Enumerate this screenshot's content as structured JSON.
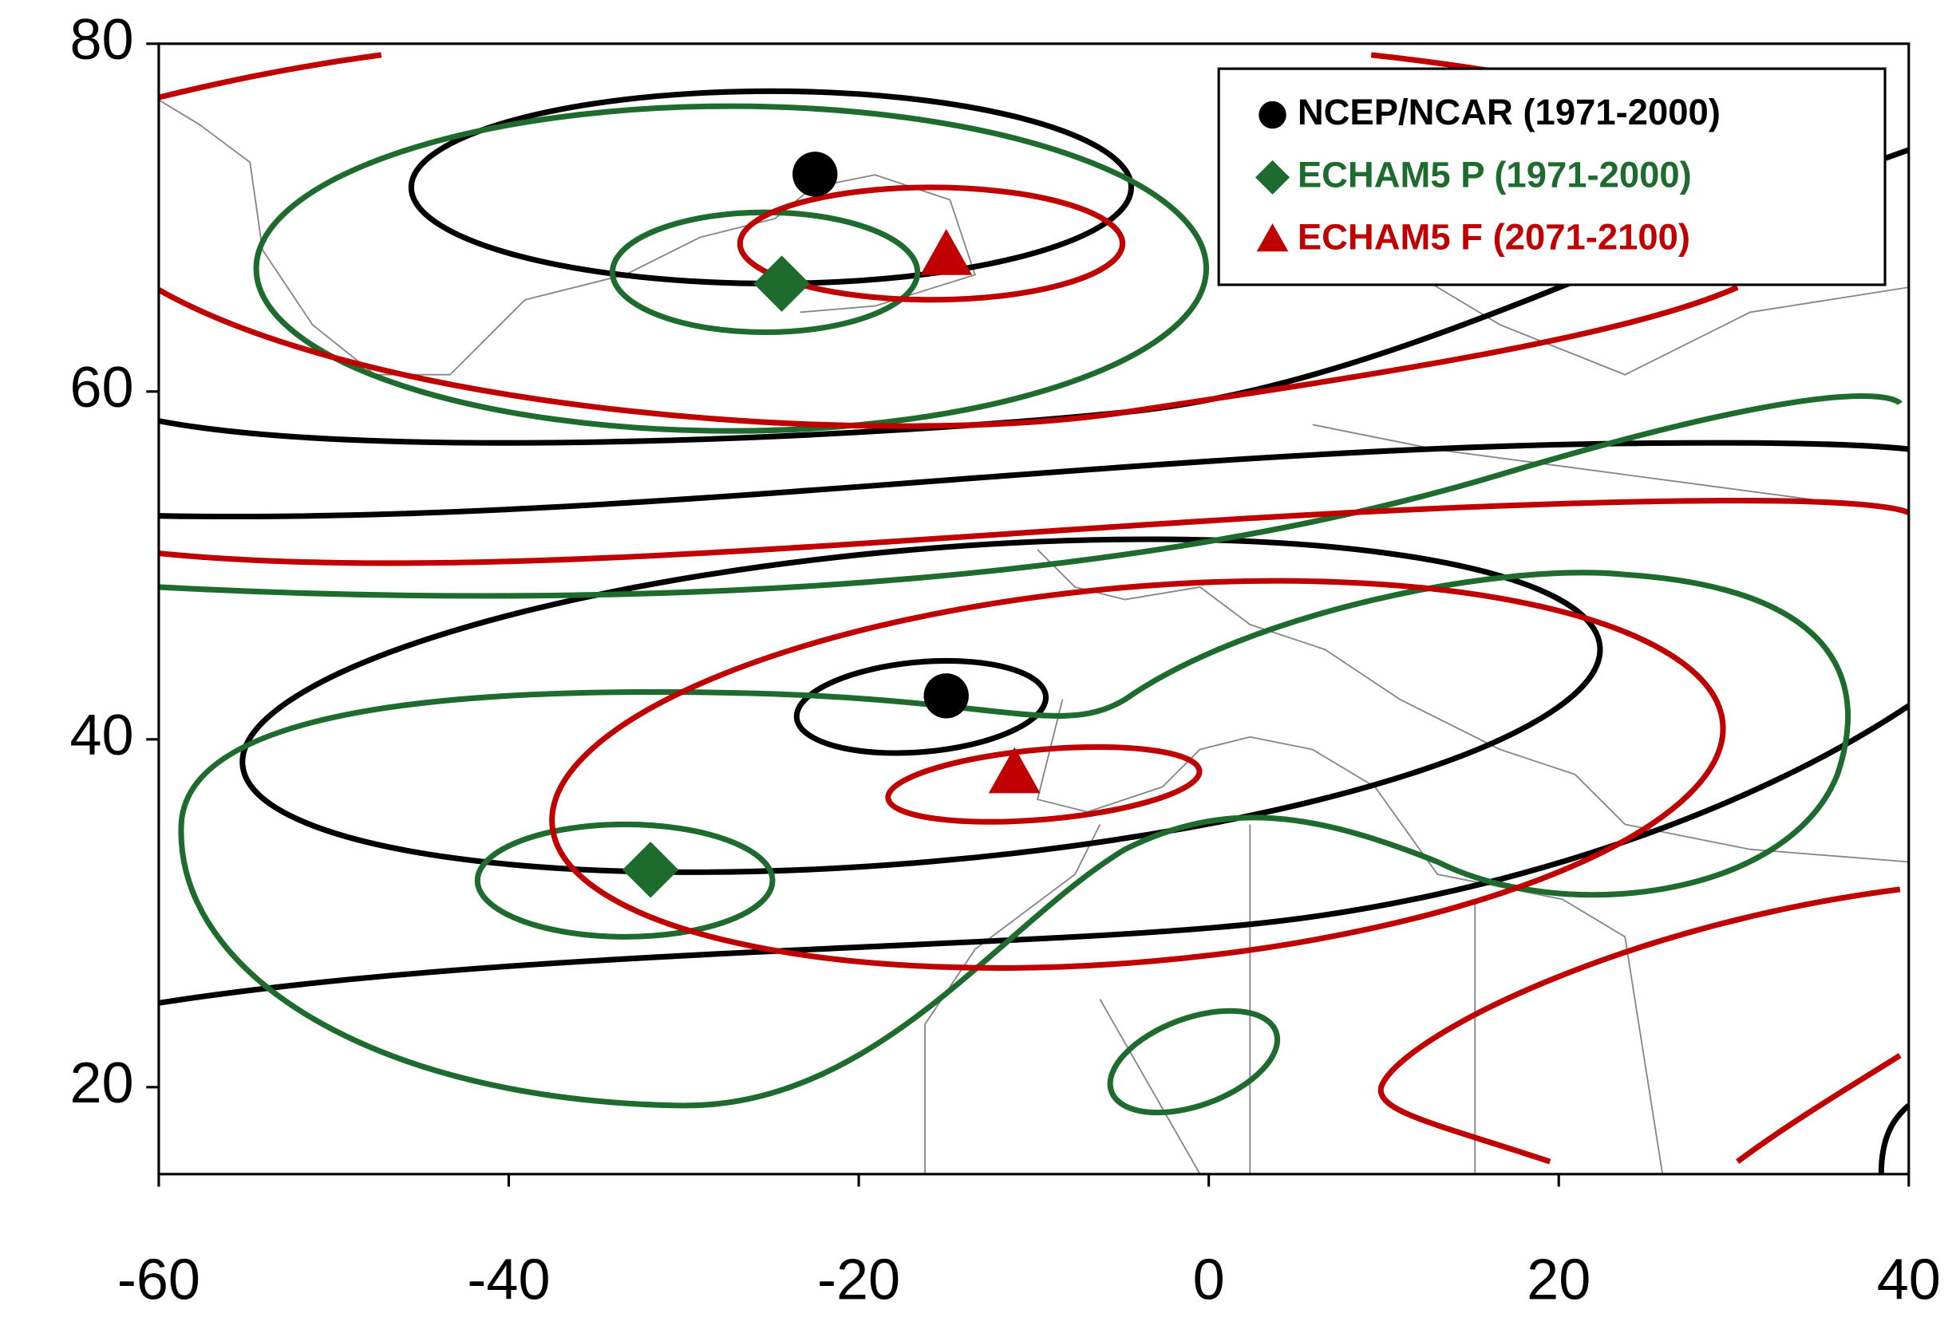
{
  "chart_data": {
    "type": "scatter",
    "xlim": [
      -60,
      40
    ],
    "ylim": [
      15,
      80
    ],
    "xticks": [
      -60,
      -40,
      -20,
      0,
      20,
      40
    ],
    "yticks": [
      20,
      40,
      60,
      80
    ],
    "legend": "upper right",
    "series": [
      {
        "name": "NCEP/NCAR (1971-2000)",
        "color": "#000000",
        "marker": "circle",
        "x": [
          -22.5,
          -15.0
        ],
        "values": [
          72.5,
          42.5
        ]
      },
      {
        "name": "ECHAM5 P (1971-2000)",
        "color": "#1e6b2e",
        "marker": "diamond",
        "x": [
          -24.4,
          -31.9
        ],
        "values": [
          66.2,
          32.5
        ]
      },
      {
        "name": "ECHAM5 F (2071-2100)",
        "color": "#c00000",
        "marker": "triangle",
        "x": [
          -15.0,
          -11.1
        ],
        "values": [
          67.8,
          38.0
        ]
      }
    ]
  }
}
